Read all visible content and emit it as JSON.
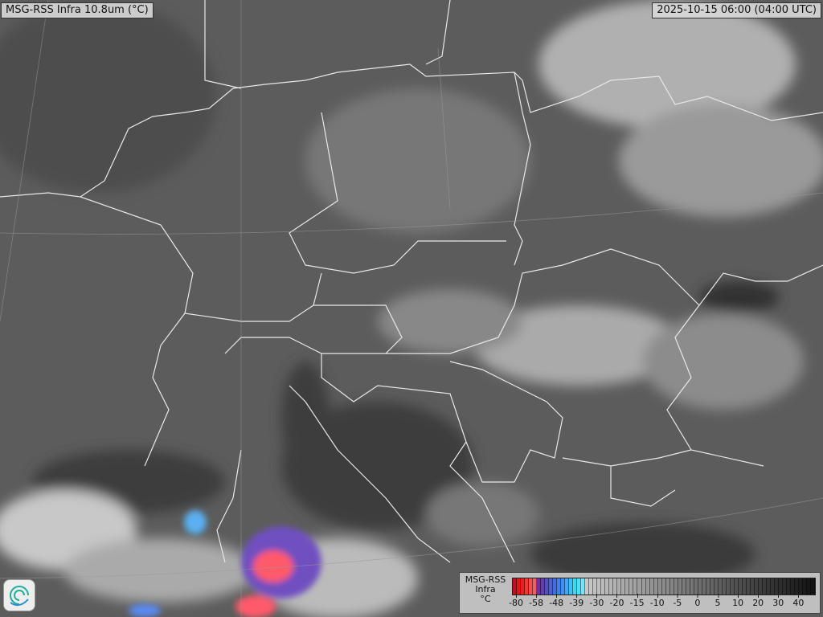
{
  "title": "MSG-RSS Infra 10.8um (°C)",
  "timestamp": "2025-10-15 06:00 (04:00 UTC)",
  "logo": {
    "icon": "swirl-logo-icon"
  },
  "legend": {
    "title_lines": [
      "MSG-RSS",
      "Infra",
      "°C"
    ],
    "ticks": [
      "-80",
      "-58",
      "-48",
      "-39",
      "-30",
      "-20",
      "-15",
      "-10",
      "-5",
      "0",
      "5",
      "10",
      "20",
      "30",
      "40"
    ],
    "colors": {
      "cold_red": "#ee1c24",
      "purple": "#7030a0",
      "blue": "#4060e0",
      "cyan": "#40d8f0",
      "warm_gray_light": "#c8c8c8",
      "warm_gray_dark": "#141414"
    }
  }
}
